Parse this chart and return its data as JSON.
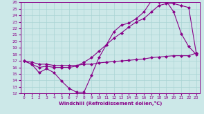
{
  "xlabel": "Windchill (Refroidissement éolien,°C)",
  "xlim": [
    -0.5,
    23.5
  ],
  "ylim": [
    12,
    26
  ],
  "xticks": [
    0,
    1,
    2,
    3,
    4,
    5,
    6,
    7,
    8,
    9,
    10,
    11,
    12,
    13,
    14,
    15,
    16,
    17,
    18,
    19,
    20,
    21,
    22,
    23
  ],
  "yticks": [
    12,
    13,
    14,
    15,
    16,
    17,
    18,
    19,
    20,
    21,
    22,
    23,
    24,
    25,
    26
  ],
  "bg_color": "#cce8e8",
  "line_color": "#880088",
  "grid_color": "#aad4d4",
  "line1_x": [
    0,
    1,
    2,
    3,
    4,
    5,
    6,
    7,
    8,
    9,
    10,
    11,
    12,
    13,
    14,
    15,
    16,
    17,
    18,
    19,
    20,
    21,
    22,
    23
  ],
  "line1_y": [
    17.0,
    16.5,
    15.2,
    15.8,
    15.2,
    13.9,
    12.8,
    12.2,
    12.2,
    14.8,
    17.5,
    19.5,
    21.5,
    22.5,
    22.8,
    23.5,
    24.5,
    26.2,
    26.0,
    26.2,
    24.5,
    21.2,
    19.2,
    18.0
  ],
  "line2_x": [
    0,
    1,
    2,
    3,
    4,
    5,
    6,
    7,
    8,
    9,
    10,
    11,
    12,
    13,
    14,
    15,
    16,
    17,
    18,
    19,
    20,
    21,
    22,
    23
  ],
  "line2_y": [
    17.0,
    16.5,
    16.0,
    16.2,
    16.0,
    16.0,
    16.0,
    16.2,
    16.8,
    17.5,
    18.5,
    19.5,
    20.5,
    21.3,
    22.2,
    23.0,
    23.5,
    24.5,
    25.5,
    25.8,
    25.8,
    25.5,
    25.2,
    18.2
  ],
  "line3_x": [
    0,
    1,
    2,
    3,
    4,
    5,
    6,
    7,
    8,
    9,
    10,
    11,
    12,
    13,
    14,
    15,
    16,
    17,
    18,
    19,
    20,
    21,
    22,
    23
  ],
  "line3_y": [
    17.0,
    16.8,
    16.5,
    16.5,
    16.3,
    16.3,
    16.3,
    16.3,
    16.5,
    16.5,
    16.7,
    16.8,
    16.9,
    17.0,
    17.1,
    17.2,
    17.3,
    17.5,
    17.6,
    17.7,
    17.8,
    17.8,
    17.8,
    18.2
  ]
}
